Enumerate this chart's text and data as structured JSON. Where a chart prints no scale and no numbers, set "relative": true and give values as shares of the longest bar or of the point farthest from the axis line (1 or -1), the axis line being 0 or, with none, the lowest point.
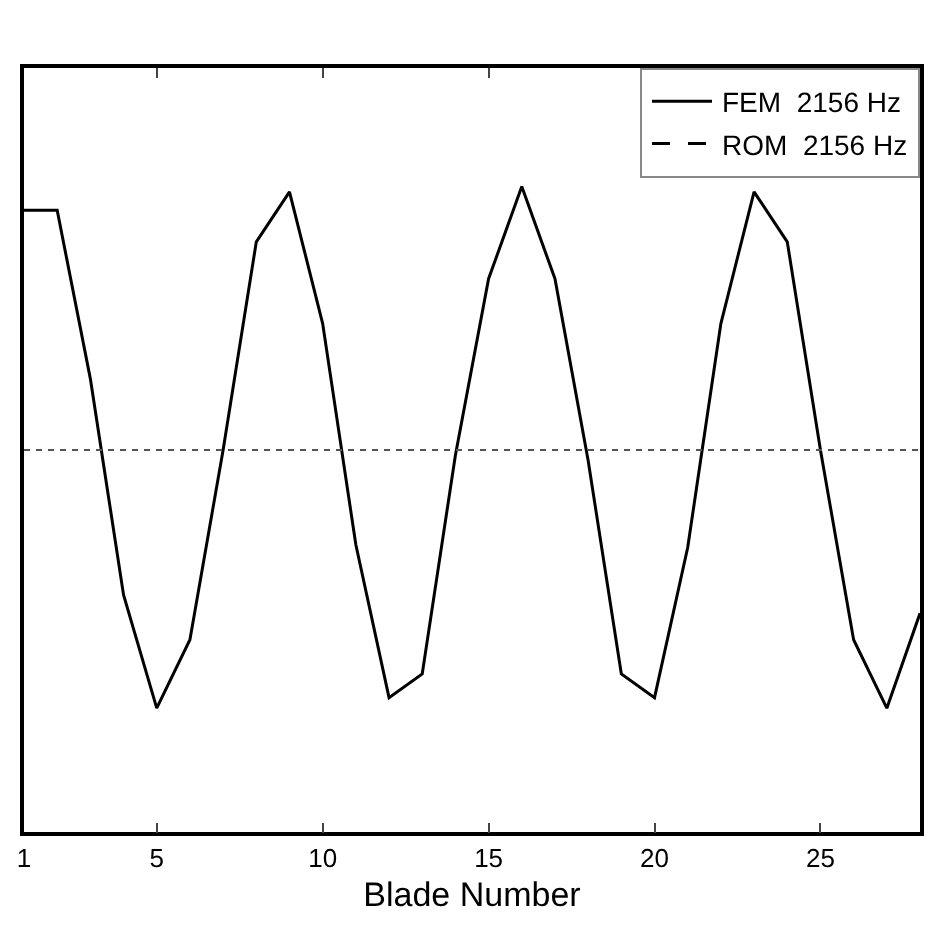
{
  "chart_data": {
    "type": "line",
    "xlabel": "Blade Number",
    "relative": true,
    "x": [
      1,
      2,
      3,
      4,
      5,
      6,
      7,
      8,
      9,
      10,
      11,
      12,
      13,
      14,
      15,
      16,
      17,
      18,
      19,
      20,
      21,
      22,
      23,
      24,
      25,
      26,
      27,
      28
    ],
    "xlim": [
      1,
      28
    ],
    "xticks": [
      1,
      5,
      10,
      15,
      20,
      25
    ],
    "series": [
      {
        "name": "FEM  2156 Hz",
        "color": "#000000",
        "line_style": "solid",
        "values": [
          0.91,
          0.91,
          0.27,
          -0.55,
          -0.98,
          -0.72,
          0,
          0.79,
          0.98,
          0.48,
          -0.36,
          -0.94,
          -0.85,
          -0.02,
          0.65,
          1,
          0.65,
          -0.04,
          -0.85,
          -0.94,
          -0.37,
          0.48,
          0.98,
          0.79,
          0,
          -0.72,
          -0.98,
          -0.62
        ]
      },
      {
        "name": "ROM  2156 Hz",
        "color": "#000000",
        "line_style": "dashed",
        "values": [
          null,
          null,
          null,
          null,
          null,
          null,
          null,
          null,
          null,
          null,
          null,
          null,
          null,
          null,
          null,
          null,
          null,
          null,
          null,
          null,
          null,
          null,
          null,
          null,
          null,
          null,
          null,
          null
        ]
      }
    ],
    "ref_lines": [
      {
        "axis": "y",
        "value": 0,
        "line_style": "dotted",
        "color": "#555555"
      }
    ],
    "legend": "top right",
    "tick_labels": "x",
    "grid": false,
    "marker": "none"
  }
}
